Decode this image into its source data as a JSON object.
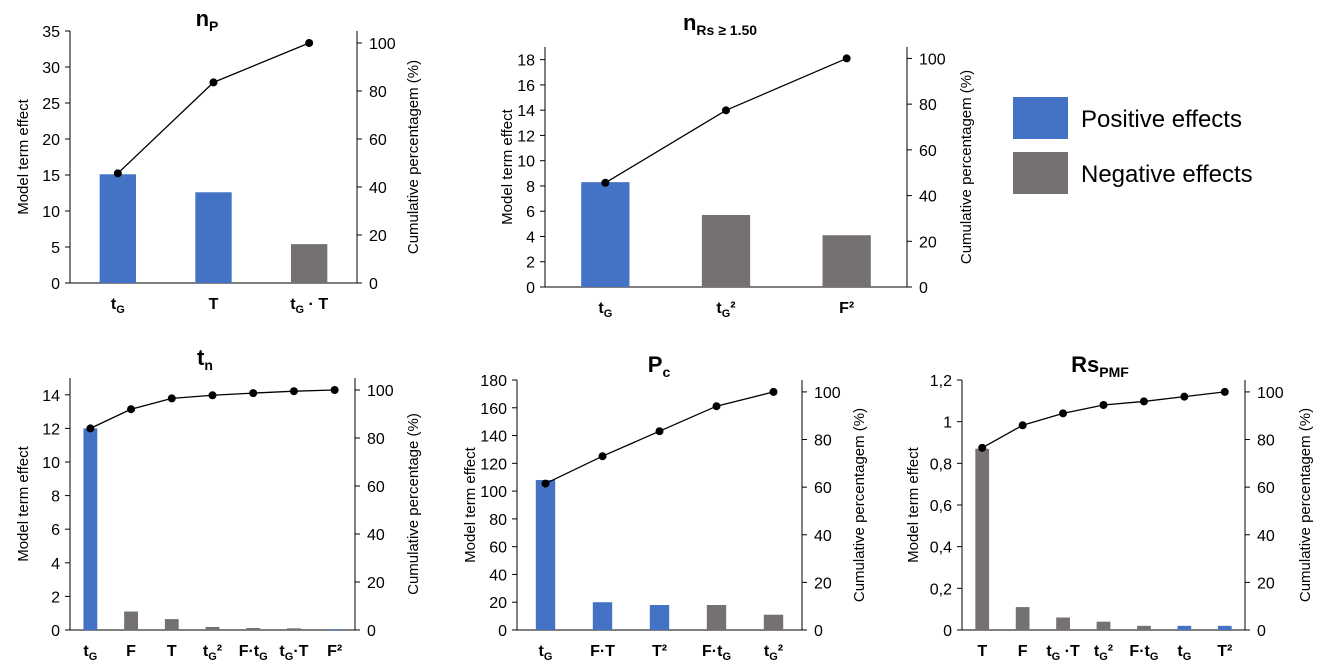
{
  "legend": {
    "entries": [
      {
        "label": "Positive effects",
        "color": "#4472C4"
      },
      {
        "label": "Negative effects",
        "color": "#767171"
      }
    ]
  },
  "chart_data": [
    {
      "type": "bar",
      "title": "n",
      "title_sub": "P",
      "categories": [
        {
          "main": "t",
          "sub": "G",
          "tail": ""
        },
        {
          "main": "T",
          "sub": "",
          "tail": ""
        },
        {
          "main": "t",
          "sub": "G",
          "tail": " · T"
        }
      ],
      "values": [
        15.1,
        12.6,
        5.4
      ],
      "signs": [
        "positive",
        "positive",
        "negative"
      ],
      "cumulative": [
        45.7,
        83.6,
        100
      ],
      "ylabel": "Model term effect",
      "y2label": "Cumulative percentagem (%)",
      "ylim": [
        0,
        35
      ],
      "yticks": [
        0,
        5,
        10,
        15,
        20,
        25,
        30,
        35
      ],
      "y2lim": [
        0,
        105
      ],
      "y2ticks": [
        0,
        20,
        40,
        60,
        80,
        100
      ],
      "decimal": "."
    },
    {
      "type": "bar",
      "title": "n",
      "title_sub": "Rs ≥ 1.50",
      "categories": [
        {
          "main": "t",
          "sub": "G",
          "tail": ""
        },
        {
          "main": "t",
          "sub": "G",
          "tail": "²"
        },
        {
          "main": "F²",
          "sub": "",
          "tail": ""
        }
      ],
      "values": [
        8.3,
        5.7,
        4.1
      ],
      "signs": [
        "positive",
        "negative",
        "negative"
      ],
      "cumulative": [
        45.6,
        77.3,
        100
      ],
      "ylabel": "Model term effect",
      "y2label": "Cumulative percentagem (%)",
      "ylim": [
        0,
        19
      ],
      "yticks": [
        0,
        2,
        4,
        6,
        8,
        10,
        12,
        14,
        16,
        18
      ],
      "y2lim": [
        0,
        105
      ],
      "y2ticks": [
        0,
        20,
        40,
        60,
        80,
        100
      ],
      "decimal": "."
    },
    {
      "type": "bar",
      "title": "t",
      "title_sub": "n",
      "categories": [
        {
          "main": "t",
          "sub": "G",
          "tail": ""
        },
        {
          "main": "F",
          "sub": "",
          "tail": ""
        },
        {
          "main": "T",
          "sub": "",
          "tail": ""
        },
        {
          "main": "t",
          "sub": "G",
          "tail": "²"
        },
        {
          "main": "F·t",
          "sub": "G",
          "tail": ""
        },
        {
          "main": "t",
          "sub": "G",
          "tail": "·T"
        },
        {
          "main": "F²",
          "sub": "",
          "tail": ""
        }
      ],
      "values": [
        12.0,
        1.1,
        0.65,
        0.18,
        0.12,
        0.1,
        0.05
      ],
      "signs": [
        "positive",
        "negative",
        "negative",
        "negative",
        "negative",
        "negative",
        "positive"
      ],
      "cumulative": [
        84,
        92,
        96.5,
        97.8,
        98.7,
        99.5,
        100
      ],
      "ylabel": "Model term effect",
      "y2label": "Cumulative percentage (%)",
      "ylim": [
        0,
        15
      ],
      "yticks": [
        0,
        2,
        4,
        6,
        8,
        10,
        12,
        14
      ],
      "y2lim": [
        0,
        105
      ],
      "y2ticks": [
        0,
        20,
        40,
        60,
        80,
        100
      ],
      "decimal": "."
    },
    {
      "type": "bar",
      "title": "P",
      "title_sub": "c",
      "categories": [
        {
          "main": "t",
          "sub": "G",
          "tail": ""
        },
        {
          "main": "F·T",
          "sub": "",
          "tail": ""
        },
        {
          "main": "T²",
          "sub": "",
          "tail": ""
        },
        {
          "main": "F·t",
          "sub": "G",
          "tail": ""
        },
        {
          "main": "t",
          "sub": "G",
          "tail": "²"
        }
      ],
      "values": [
        108,
        20,
        18,
        18,
        11
      ],
      "signs": [
        "positive",
        "positive",
        "positive",
        "negative",
        "negative"
      ],
      "cumulative": [
        61.5,
        73,
        83.5,
        94,
        100
      ],
      "ylabel": "Model term effect",
      "y2label": "Cumulative percentagem (%)",
      "ylim": [
        0,
        180
      ],
      "yticks": [
        0,
        20,
        40,
        60,
        80,
        100,
        120,
        140,
        160,
        180
      ],
      "y2lim": [
        0,
        105
      ],
      "y2ticks": [
        0,
        20,
        40,
        60,
        80,
        100
      ],
      "decimal": "."
    },
    {
      "type": "bar",
      "title": "Rs",
      "title_sub": "PMF",
      "categories": [
        {
          "main": "T",
          "sub": "",
          "tail": ""
        },
        {
          "main": "F",
          "sub": "",
          "tail": ""
        },
        {
          "main": "t",
          "sub": "G",
          "tail": " ·T"
        },
        {
          "main": "t",
          "sub": "G",
          "tail": "²"
        },
        {
          "main": "F·t",
          "sub": "G",
          "tail": ""
        },
        {
          "main": "t",
          "sub": "G",
          "tail": ""
        },
        {
          "main": "T²",
          "sub": "",
          "tail": ""
        }
      ],
      "values": [
        0.87,
        0.11,
        0.06,
        0.04,
        0.02,
        0.02,
        0.02
      ],
      "signs": [
        "negative",
        "negative",
        "negative",
        "negative",
        "negative",
        "positive",
        "positive"
      ],
      "cumulative": [
        76.5,
        86,
        91,
        94.5,
        96,
        98,
        100
      ],
      "ylabel": "Model term effect",
      "y2label": "Cumulative percentagem (%)",
      "ylim": [
        0,
        1.2
      ],
      "yticks": [
        0,
        0.2,
        0.4,
        0.6,
        0.8,
        1,
        1.2
      ],
      "y2lim": [
        0,
        105
      ],
      "y2ticks": [
        0,
        20,
        40,
        60,
        80,
        100
      ],
      "decimal": ","
    }
  ]
}
